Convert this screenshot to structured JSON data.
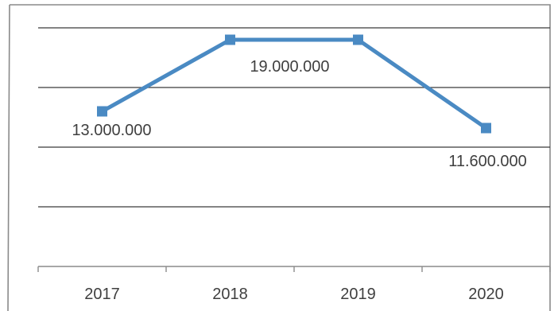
{
  "chart_data": {
    "type": "line",
    "categories": [
      "2017",
      "2018",
      "2019",
      "2020"
    ],
    "series": [
      {
        "values": [
          13000000,
          19000000,
          19000000,
          11600000
        ],
        "data_labels": [
          "13.000.000",
          "19.000.000",
          "19.000.000",
          "11.600.000"
        ],
        "shown_labels": [
          true,
          false,
          true,
          true
        ],
        "color": "#4a8ac3",
        "marker": "square"
      }
    ],
    "grid": true,
    "legend": "none",
    "title": "",
    "xlabel": "",
    "ylabel": ""
  }
}
